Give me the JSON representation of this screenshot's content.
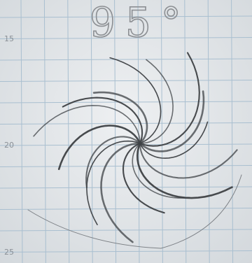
{
  "sketch": {
    "title": "95°",
    "margin_numbers": [
      "15",
      "20",
      "25"
    ]
  }
}
